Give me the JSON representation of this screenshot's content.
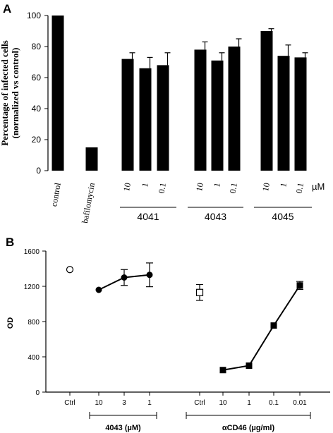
{
  "chart_data": [
    {
      "panel": "A",
      "type": "bar",
      "ylabel": "Percentage of infected cells (normalized vs control)",
      "ylim": [
        0,
        100
      ],
      "yticks": [
        0,
        20,
        40,
        60,
        80,
        100
      ],
      "unit_label": "µM",
      "bars": [
        {
          "label": "control",
          "value": 100,
          "err": 0
        },
        {
          "label": "bafilomycin",
          "value": 15,
          "err": 0
        },
        {
          "label": "10",
          "group": "4041",
          "value": 72,
          "err": 4
        },
        {
          "label": "1",
          "group": "4041",
          "value": 66,
          "err": 7
        },
        {
          "label": "0.1",
          "group": "4041",
          "value": 68,
          "err": 8
        },
        {
          "label": "10",
          "group": "4043",
          "value": 78,
          "err": 5
        },
        {
          "label": "1",
          "group": "4043",
          "value": 71,
          "err": 5
        },
        {
          "label": "0.1",
          "group": "4043",
          "value": 80,
          "err": 5
        },
        {
          "label": "10",
          "group": "4045",
          "value": 90,
          "err": 1.5
        },
        {
          "label": "1",
          "group": "4045",
          "value": 74,
          "err": 7
        },
        {
          "label": "0.1",
          "group": "4045",
          "value": 73,
          "err": 3
        }
      ],
      "groups": [
        "4041",
        "4043",
        "4045"
      ]
    },
    {
      "panel": "B",
      "type": "line",
      "ylabel": "OD",
      "ylim": [
        0,
        1600
      ],
      "yticks": [
        0,
        400,
        800,
        1200,
        1600
      ],
      "categories": [
        "Ctrl",
        "10",
        "3",
        "1",
        "Ctrl",
        "10",
        "1",
        "0.1",
        "0.01"
      ],
      "group_labels": [
        "4043 (µM)",
        "αCD46 (µg/ml)"
      ],
      "series": [
        {
          "marker": "open-circle",
          "points": [
            {
              "x": "Ctrl",
              "y": 1390,
              "err": 0
            }
          ]
        },
        {
          "marker": "filled-circle",
          "points": [
            {
              "x": "10",
              "y": 1160,
              "err": 0
            },
            {
              "x": "3",
              "y": 1300,
              "err": 90
            },
            {
              "x": "1",
              "y": 1330,
              "err": 135
            }
          ]
        },
        {
          "marker": "open-square",
          "points": [
            {
              "x": "Ctrl",
              "y": 1130,
              "err": 90
            }
          ]
        },
        {
          "marker": "filled-square",
          "points": [
            {
              "x": "10",
              "y": 250,
              "err": 0
            },
            {
              "x": "1",
              "y": 300,
              "err": 0
            },
            {
              "x": "0.1",
              "y": 755,
              "err": 0
            },
            {
              "x": "0.01",
              "y": 1210,
              "err": 45
            }
          ]
        }
      ]
    }
  ],
  "labels": {
    "panel_a": "A",
    "panel_b": "B"
  }
}
